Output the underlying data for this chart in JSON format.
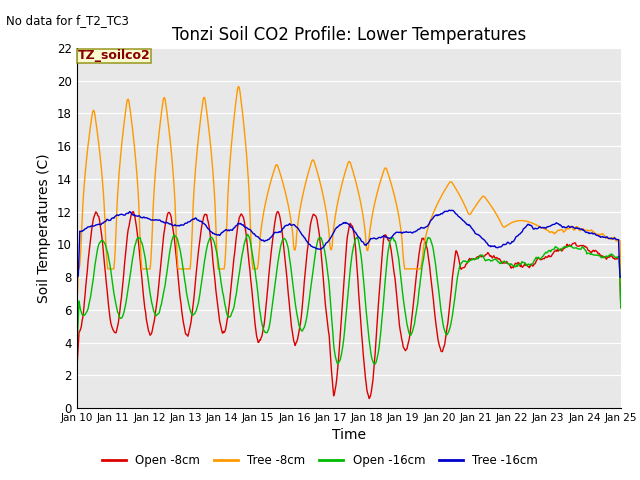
{
  "title": "Tonzi Soil CO2 Profile: Lower Temperatures",
  "no_data_text": "No data for f_T2_TC3",
  "xlabel": "Time",
  "ylabel": "Soil Temperatures (C)",
  "ylim": [
    0,
    22
  ],
  "x_tick_labels": [
    "Jan 10",
    "Jan 11",
    "Jan 12",
    "Jan 13",
    "Jan 14",
    "Jan 15",
    "Jan 16",
    "Jan 17",
    "Jan 18",
    "Jan 19",
    "Jan 20",
    "Jan 21",
    "Jan 22",
    "Jan 23",
    "Jan 24",
    "Jan 25"
  ],
  "legend_label": "TZ_soilco2",
  "legend_entries": [
    "Open -8cm",
    "Tree -8cm",
    "Open -16cm",
    "Tree -16cm"
  ],
  "line_colors": [
    "#dd0000",
    "#ff9900",
    "#00bb00",
    "#0000cc"
  ],
  "bg_color": "#e8e8e8",
  "title_fontsize": 12,
  "axis_label_fontsize": 10
}
